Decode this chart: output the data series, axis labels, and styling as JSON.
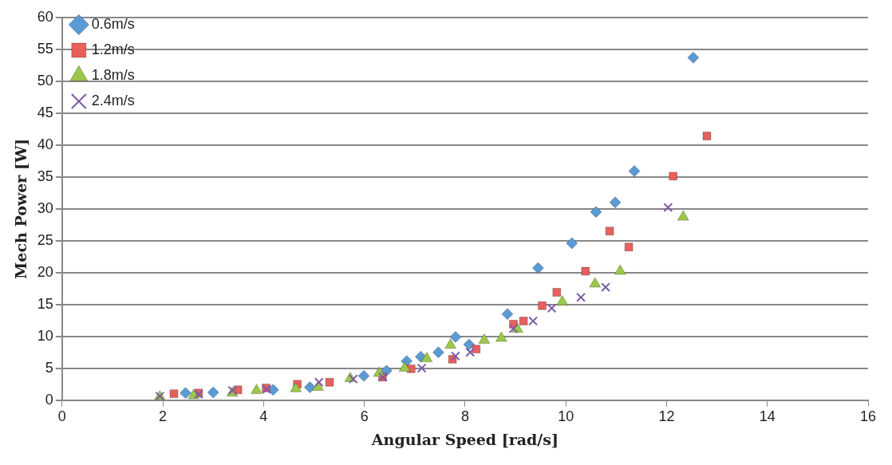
{
  "chart_data": {
    "type": "scatter",
    "xlabel": "Angular Speed [rad/s]",
    "ylabel": "Mech Power [W]",
    "xlim": [
      0,
      16
    ],
    "xticks": [
      0,
      2,
      4,
      6,
      8,
      10,
      12,
      14,
      16
    ],
    "ylim": [
      0,
      60
    ],
    "yticks": [
      0,
      5,
      10,
      15,
      20,
      25,
      30,
      35,
      40,
      45,
      50,
      55,
      60
    ],
    "grid": "y",
    "legend": "top left",
    "series": [
      {
        "name": "0.6m/s",
        "color": "#5b9bd5",
        "marker": "diamond",
        "x": [
          2.45,
          3.0,
          4.19,
          4.92,
          5.99,
          6.44,
          6.84,
          7.12,
          7.47,
          7.81,
          8.08,
          8.84,
          9.45,
          10.12,
          10.6,
          10.98,
          11.36,
          12.53
        ],
        "values": [
          1.1,
          1.2,
          1.6,
          2.0,
          3.8,
          4.6,
          6.1,
          6.8,
          7.5,
          9.9,
          8.7,
          13.5,
          20.7,
          24.6,
          29.5,
          31.0,
          35.9,
          53.7
        ]
      },
      {
        "name": "1.2m/s",
        "color": "#e8605d",
        "marker": "square",
        "x": [
          2.22,
          2.71,
          3.49,
          4.05,
          4.67,
          5.31,
          6.36,
          6.93,
          7.75,
          8.22,
          8.96,
          9.16,
          9.53,
          9.82,
          10.39,
          10.87,
          11.25,
          12.13,
          12.8
        ],
        "values": [
          1.0,
          1.1,
          1.6,
          1.9,
          2.5,
          2.8,
          3.6,
          4.9,
          6.4,
          8.0,
          11.9,
          12.4,
          14.8,
          16.9,
          20.2,
          26.5,
          24.0,
          35.1,
          41.4
        ]
      },
      {
        "name": "1.8m/s",
        "color": "#9bc848",
        "marker": "triangle",
        "x": [
          1.94,
          2.61,
          3.38,
          3.86,
          4.64,
          5.08,
          5.72,
          6.29,
          6.8,
          7.24,
          7.71,
          8.38,
          8.72,
          9.04,
          9.93,
          10.58,
          11.08,
          12.33
        ],
        "values": [
          0.5,
          0.7,
          1.1,
          1.5,
          1.8,
          2.0,
          3.4,
          4.2,
          5.0,
          6.5,
          8.6,
          9.4,
          9.7,
          11.1,
          15.4,
          18.2,
          20.2,
          28.7
        ]
      },
      {
        "name": "2.4m/s",
        "color": "#7d5ba6",
        "marker": "cross",
        "x": [
          1.94,
          2.71,
          3.38,
          4.06,
          5.1,
          5.78,
          6.37,
          7.14,
          7.81,
          8.1,
          8.96,
          9.35,
          9.72,
          10.3,
          10.79,
          12.03
        ],
        "values": [
          0.6,
          0.9,
          1.5,
          1.7,
          2.8,
          3.3,
          3.6,
          5.0,
          6.9,
          7.5,
          11.2,
          12.4,
          14.4,
          16.1,
          17.7,
          30.2
        ]
      }
    ]
  }
}
